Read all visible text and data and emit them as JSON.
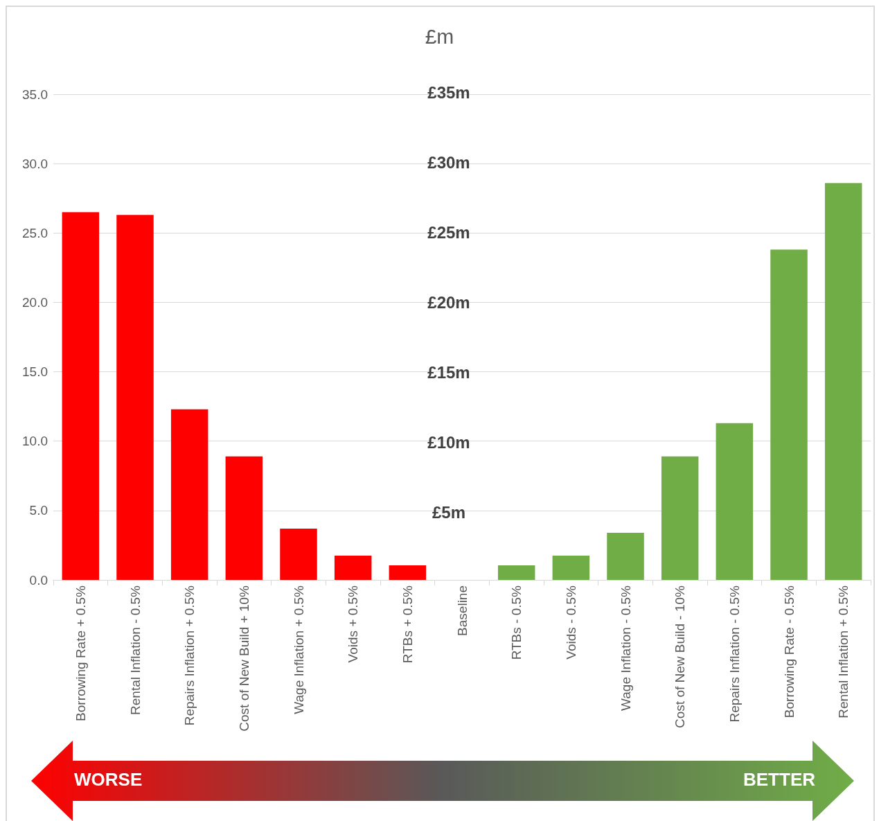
{
  "chart_data": {
    "type": "bar",
    "title": "£m",
    "categories": [
      "Borrowing Rate + 0.5%",
      "Rental Inflation - 0.5%",
      "Repairs Inflation + 0.5%",
      "Cost of New Build + 10%",
      "Wage Inflation + 0.5%",
      "Voids + 0.5%",
      "RTBs + 0.5%",
      "Baseline",
      "RTBs - 0.5%",
      "Voids - 0.5%",
      "Wage Inflation - 0.5%",
      "Cost of New Build - 10%",
      "Repairs Inflation - 0.5%",
      "Borrowing Rate - 0.5%",
      "Rental Inflation + 0.5%"
    ],
    "values": [
      26.5,
      26.3,
      12.3,
      8.9,
      3.7,
      1.75,
      1.05,
      0,
      1.05,
      1.75,
      3.4,
      8.9,
      11.3,
      23.8,
      28.6
    ],
    "colors": [
      "#ff0000",
      "#ff0000",
      "#ff0000",
      "#ff0000",
      "#ff0000",
      "#ff0000",
      "#ff0000",
      "#595959",
      "#70ad47",
      "#70ad47",
      "#70ad47",
      "#70ad47",
      "#70ad47",
      "#70ad47",
      "#70ad47"
    ],
    "ylim": [
      0,
      35
    ],
    "yticks": [
      {
        "value": 0,
        "label": "0.0"
      },
      {
        "value": 5,
        "label": "5.0"
      },
      {
        "value": 10,
        "label": "10.0"
      },
      {
        "value": 15,
        "label": "15.0"
      },
      {
        "value": 20,
        "label": "20.0"
      },
      {
        "value": 25,
        "label": "25.0"
      },
      {
        "value": 30,
        "label": "30.0"
      },
      {
        "value": 35,
        "label": "35.0"
      }
    ],
    "grid": "y",
    "annotations": [
      "£35m",
      "£30m",
      "£25m",
      "£20m",
      "£15m",
      "£10m",
      "£5m",
      "WORSE",
      "BETTER"
    ]
  }
}
